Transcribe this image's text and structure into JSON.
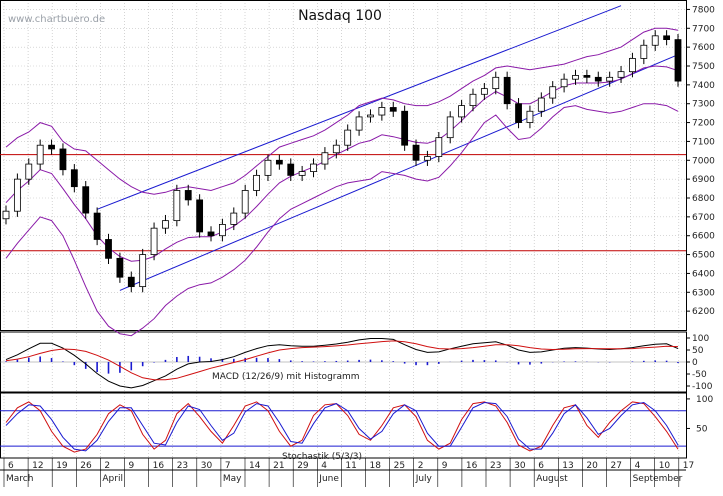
{
  "chart_data": {
    "type": "candlestick",
    "title": "Nasdaq 100",
    "watermark": "www.chartbuero.de",
    "price_axis": {
      "ylim": [
        6100,
        7850
      ],
      "ticks": [
        6200,
        6300,
        6400,
        6500,
        6600,
        6700,
        6800,
        6900,
        7000,
        7100,
        7200,
        7300,
        7400,
        7500,
        7600,
        7700,
        7800
      ],
      "tick_labels": [
        "6200",
        "6300",
        "6400",
        "6500",
        "6600",
        "6700",
        "6800",
        "6900",
        "7000",
        "7100",
        "7200",
        "7300",
        "7400",
        "7500",
        "7600",
        "7700",
        "7800"
      ]
    },
    "day_labels": [
      "6",
      "12",
      "19",
      "26",
      "2",
      "9",
      "16",
      "23",
      "30",
      "7",
      "14",
      "21",
      "29",
      "4",
      "11",
      "18",
      "25",
      "2",
      "9",
      "16",
      "23",
      "30",
      "6",
      "13",
      "20",
      "27",
      "4",
      "10",
      "17"
    ],
    "month_labels": [
      "March",
      "April",
      "May",
      "June",
      "July",
      "August",
      "September"
    ],
    "month_positions": [
      0,
      4,
      9,
      13,
      17,
      22,
      26
    ],
    "horizontal_levels": [
      7030,
      6520
    ],
    "channel": {
      "upper": [
        [
          5,
          6740
        ],
        [
          120,
          7800
        ]
      ],
      "lower": [
        [
          5,
          6310
        ],
        [
          140,
          7560
        ]
      ]
    },
    "close": [
      6730,
      6900,
      6980,
      7080,
      7060,
      6950,
      6860,
      6720,
      6580,
      6480,
      6380,
      6330,
      6500,
      6640,
      6680,
      6840,
      6790,
      6620,
      6600,
      6660,
      6720,
      6840,
      6920,
      7000,
      6980,
      6920,
      6940,
      6980,
      7040,
      7080,
      7160,
      7230,
      7240,
      7280,
      7260,
      7080,
      7000,
      7020,
      7120,
      7230,
      7290,
      7350,
      7380,
      7440,
      7300,
      7200,
      7260,
      7330,
      7390,
      7430,
      7450,
      7440,
      7420,
      7440,
      7470,
      7540,
      7610,
      7660,
      7640,
      7420
    ],
    "bollinger": {
      "upper": [
        7070,
        7120,
        7150,
        7200,
        7180,
        7100,
        7060,
        7050,
        7000,
        6950,
        6900,
        6860,
        6830,
        6820,
        6830,
        6850,
        6860,
        6850,
        6840,
        6860,
        6880,
        6920,
        6970,
        7020,
        7070,
        7090,
        7110,
        7130,
        7160,
        7200,
        7240,
        7290,
        7310,
        7330,
        7320,
        7300,
        7290,
        7290,
        7310,
        7340,
        7380,
        7420,
        7450,
        7490,
        7500,
        7490,
        7480,
        7490,
        7500,
        7510,
        7530,
        7550,
        7560,
        7580,
        7600,
        7640,
        7680,
        7700,
        7700,
        7690
      ],
      "lower": [
        6480,
        6560,
        6630,
        6700,
        6680,
        6600,
        6470,
        6330,
        6200,
        6120,
        6080,
        6070,
        6110,
        6160,
        6230,
        6280,
        6320,
        6340,
        6350,
        6380,
        6420,
        6470,
        6540,
        6620,
        6690,
        6740,
        6770,
        6800,
        6830,
        6860,
        6880,
        6890,
        6900,
        6940,
        6930,
        6920,
        6900,
        6890,
        6910,
        6970,
        7040,
        7120,
        7200,
        7240,
        7170,
        7110,
        7120,
        7170,
        7230,
        7280,
        7290,
        7270,
        7260,
        7250,
        7260,
        7280,
        7300,
        7300,
        7290,
        7260
      ]
    },
    "macd": {
      "label": "MACD (12/26/9) mit Histogramm",
      "ylim": [
        -125,
        125
      ],
      "ticks": [
        100,
        50,
        0,
        -50,
        -100
      ],
      "tick_labels": [
        "100",
        "50",
        "0",
        "-50",
        "-100"
      ],
      "macd": [
        10,
        30,
        55,
        78,
        78,
        58,
        28,
        -8,
        -48,
        -80,
        -100,
        -108,
        -98,
        -78,
        -58,
        -30,
        -8,
        0,
        2,
        10,
        22,
        40,
        56,
        68,
        72,
        68,
        66,
        66,
        70,
        75,
        82,
        92,
        98,
        98,
        94,
        72,
        52,
        40,
        42,
        55,
        66,
        76,
        80,
        84,
        70,
        50,
        40,
        42,
        50,
        57,
        60,
        58,
        54,
        52,
        55,
        60,
        68,
        74,
        76,
        56
      ],
      "signal": [
        5,
        12,
        22,
        36,
        48,
        54,
        52,
        44,
        28,
        8,
        -18,
        -45,
        -66,
        -74,
        -74,
        -68,
        -54,
        -40,
        -26,
        -14,
        -2,
        10,
        24,
        38,
        50,
        56,
        60,
        62,
        64,
        67,
        71,
        76,
        80,
        85,
        88,
        84,
        76,
        64,
        56,
        54,
        56,
        60,
        66,
        72,
        72,
        68,
        60,
        54,
        52,
        53,
        55,
        56,
        56,
        55,
        55,
        56,
        59,
        62,
        66,
        64
      ],
      "histogram": [
        5,
        18,
        33,
        42,
        30,
        4,
        -24,
        -52,
        -76,
        -88,
        -82,
        -63,
        -32,
        -4,
        16,
        38,
        46,
        40,
        28,
        24,
        24,
        30,
        32,
        30,
        22,
        12,
        6,
        4,
        6,
        8,
        11,
        16,
        18,
        13,
        6,
        -12,
        -24,
        -24,
        -14,
        1,
        10,
        16,
        14,
        12,
        -2,
        -18,
        -20,
        -12,
        -2,
        4,
        5,
        2,
        -2,
        -3,
        0,
        4,
        9,
        12,
        10,
        -8
      ]
    },
    "stochastic": {
      "label": "Stochastik (5/3/3)",
      "ylim": [
        0,
        110
      ],
      "ticks": [
        100,
        50
      ],
      "tick_labels": [
        "100",
        "50"
      ],
      "guide_levels": [
        80,
        20
      ],
      "k": [
        60,
        85,
        95,
        80,
        45,
        20,
        10,
        15,
        40,
        75,
        90,
        80,
        40,
        15,
        30,
        75,
        92,
        70,
        45,
        25,
        55,
        88,
        95,
        80,
        45,
        20,
        30,
        72,
        90,
        92,
        72,
        40,
        30,
        55,
        85,
        90,
        70,
        30,
        15,
        25,
        65,
        92,
        95,
        88,
        60,
        22,
        12,
        20,
        55,
        85,
        90,
        55,
        35,
        60,
        80,
        95,
        92,
        70,
        45,
        15
      ],
      "d": [
        55,
        75,
        90,
        88,
        65,
        35,
        15,
        12,
        30,
        62,
        85,
        85,
        55,
        25,
        22,
        60,
        88,
        82,
        55,
        30,
        42,
        78,
        92,
        88,
        60,
        28,
        25,
        58,
        85,
        92,
        80,
        50,
        32,
        45,
        75,
        90,
        80,
        42,
        20,
        20,
        52,
        85,
        94,
        92,
        70,
        32,
        15,
        15,
        42,
        75,
        90,
        68,
        40,
        50,
        72,
        90,
        94,
        80,
        55,
        22
      ]
    }
  }
}
